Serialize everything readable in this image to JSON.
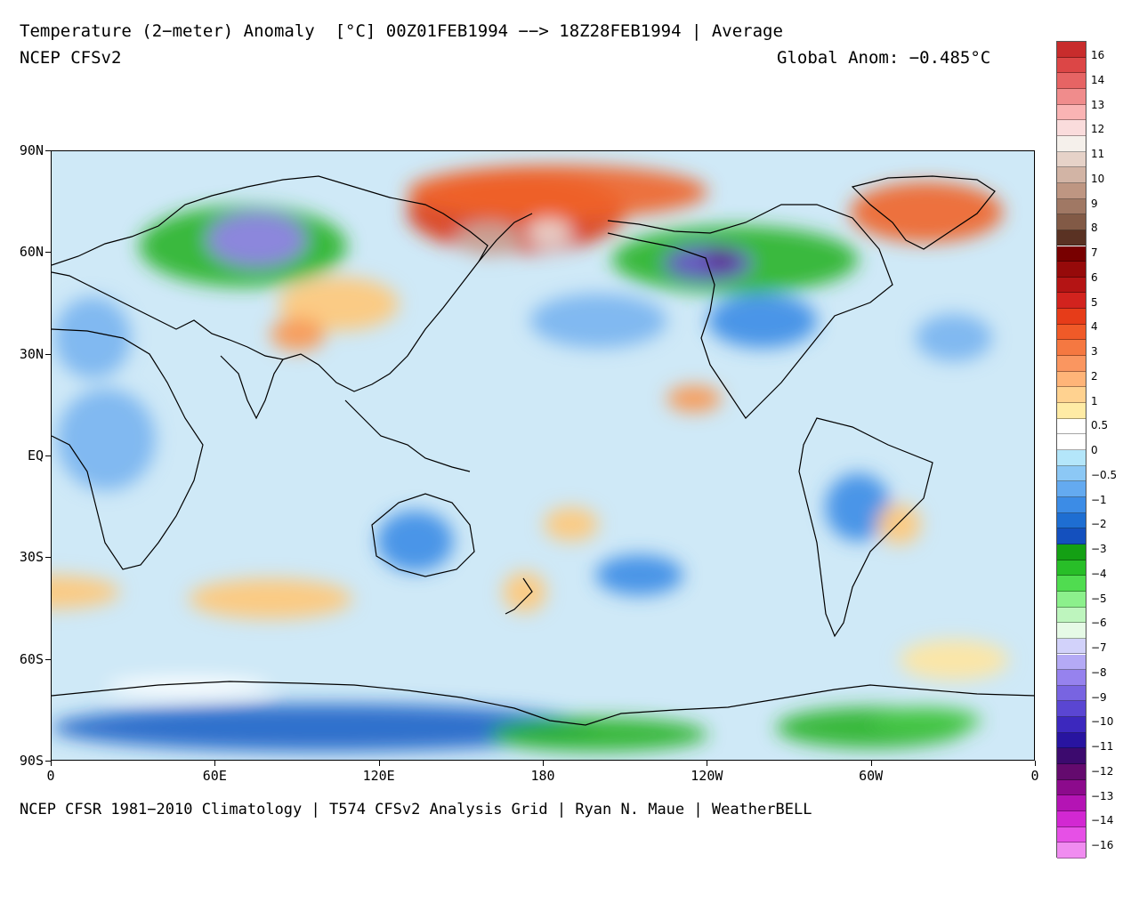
{
  "header": {
    "title": "Temperature (2−meter) Anomaly  [°C] 00Z01FEB1994 −−> 18Z28FEB1994 | Average",
    "model": "NCEP CFSv2",
    "global_anomaly": "Global Anom: −0.485°C"
  },
  "footer": {
    "credits": "NCEP CFSR 1981−2010 Climatology | T574 CFSv2 Analysis Grid | Ryan N. Maue | WeatherBELL"
  },
  "map": {
    "projection": "equirectangular",
    "lon_range": [
      0,
      360
    ],
    "lat_range": [
      -90,
      90
    ],
    "y_ticks": [
      {
        "lat": 90,
        "label": "90N"
      },
      {
        "lat": 60,
        "label": "60N"
      },
      {
        "lat": 30,
        "label": "30N"
      },
      {
        "lat": 0,
        "label": "EQ"
      },
      {
        "lat": -30,
        "label": "30S"
      },
      {
        "lat": -60,
        "label": "60S"
      },
      {
        "lat": -90,
        "label": "90S"
      }
    ],
    "x_ticks": [
      {
        "lon": 0,
        "label": "0"
      },
      {
        "lon": 60,
        "label": "60E"
      },
      {
        "lon": 120,
        "label": "120E"
      },
      {
        "lon": 180,
        "label": "180"
      },
      {
        "lon": 240,
        "label": "120W"
      },
      {
        "lon": 300,
        "label": "60W"
      },
      {
        "lon": 360,
        "label": "0"
      }
    ],
    "anomaly_regions": [
      {
        "lon": 170,
        "lat": 72,
        "rx": 40,
        "ry": 12,
        "value": 4
      },
      {
        "lon": 185,
        "lat": 78,
        "rx": 55,
        "ry": 8,
        "value": 3
      },
      {
        "lon": 160,
        "lat": 64,
        "rx": 12,
        "ry": 5,
        "value": 9
      },
      {
        "lon": 182,
        "lat": 66,
        "rx": 8,
        "ry": 4,
        "value": 10
      },
      {
        "lon": 320,
        "lat": 72,
        "rx": 28,
        "ry": 9,
        "value": 3
      },
      {
        "lon": 105,
        "lat": 45,
        "rx": 22,
        "ry": 8,
        "value": 1
      },
      {
        "lon": 90,
        "lat": 36,
        "rx": 10,
        "ry": 5,
        "value": 2
      },
      {
        "lon": 70,
        "lat": 62,
        "rx": 38,
        "ry": 12,
        "value": -4
      },
      {
        "lon": 75,
        "lat": 64,
        "rx": 18,
        "ry": 8,
        "value": -8
      },
      {
        "lon": 250,
        "lat": 58,
        "rx": 45,
        "ry": 10,
        "value": -4
      },
      {
        "lon": 240,
        "lat": 57,
        "rx": 16,
        "ry": 5,
        "value": -9
      },
      {
        "lon": 245,
        "lat": 58,
        "rx": 6,
        "ry": 3,
        "value": -11
      },
      {
        "lon": 260,
        "lat": 40,
        "rx": 20,
        "ry": 8,
        "value": -2
      },
      {
        "lon": 200,
        "lat": 40,
        "rx": 25,
        "ry": 8,
        "value": -1
      },
      {
        "lon": 15,
        "lat": 35,
        "rx": 14,
        "ry": 12,
        "value": -1
      },
      {
        "lon": 20,
        "lat": 5,
        "rx": 18,
        "ry": 15,
        "value": -1
      },
      {
        "lon": 0,
        "lat": -40,
        "rx": 25,
        "ry": 5,
        "value": 1
      },
      {
        "lon": 80,
        "lat": -42,
        "rx": 30,
        "ry": 6,
        "value": 1
      },
      {
        "lon": 133,
        "lat": -25,
        "rx": 14,
        "ry": 9,
        "value": -1.5
      },
      {
        "lon": 173,
        "lat": -40,
        "rx": 8,
        "ry": 6,
        "value": 1
      },
      {
        "lon": 215,
        "lat": -35,
        "rx": 16,
        "ry": 6,
        "value": -2
      },
      {
        "lon": 190,
        "lat": -20,
        "rx": 10,
        "ry": 5,
        "value": 1
      },
      {
        "lon": 235,
        "lat": 17,
        "rx": 10,
        "ry": 4,
        "value": 2
      },
      {
        "lon": 295,
        "lat": -15,
        "rx": 12,
        "ry": 10,
        "value": -1.5
      },
      {
        "lon": 310,
        "lat": -20,
        "rx": 8,
        "ry": 6,
        "value": 1
      },
      {
        "lon": 330,
        "lat": 35,
        "rx": 14,
        "ry": 7,
        "value": -1
      },
      {
        "lon": 100,
        "lat": -80,
        "rx": 100,
        "ry": 7,
        "value": -2.5
      },
      {
        "lon": 200,
        "lat": -82,
        "rx": 40,
        "ry": 5,
        "value": -4
      },
      {
        "lon": 300,
        "lat": -80,
        "rx": 35,
        "ry": 6,
        "value": -4
      },
      {
        "lon": 320,
        "lat": -78,
        "rx": 20,
        "ry": 4,
        "value": -5
      },
      {
        "lon": 330,
        "lat": -60,
        "rx": 20,
        "ry": 6,
        "value": 0.5
      },
      {
        "lon": 50,
        "lat": -68,
        "rx": 30,
        "ry": 3,
        "value": 0
      }
    ]
  },
  "colorbar": {
    "levels": [
      {
        "label": "16",
        "color": "#c82c2c"
      },
      {
        "label": "14",
        "color": "#dc4646"
      },
      {
        "label": "13",
        "color": "#e66464"
      },
      {
        "label": "12",
        "color": "#f08c8c"
      },
      {
        "label": "11",
        "color": "#fab4b4"
      },
      {
        "label": "10",
        "color": "#fadcdc"
      },
      {
        "label": "9",
        "color": "#f5f0eb"
      },
      {
        "label": "8",
        "color": "#e6d2c8"
      },
      {
        "label": "7",
        "color": "#d2b4a5"
      },
      {
        "label": "",
        "color": "#be9682"
      },
      {
        "label": "6",
        "color": "#a07864"
      },
      {
        "label": "5",
        "color": "#825a46"
      },
      {
        "label": "4",
        "color": "#5a3223"
      },
      {
        "label": "3",
        "color": "#780000"
      },
      {
        "label": "2",
        "color": "#960a0a"
      },
      {
        "label": "1",
        "color": "#b41414"
      },
      {
        "label": "0.5",
        "color": "#d2231e"
      },
      {
        "label": "",
        "color": "#e63c19"
      },
      {
        "label": "",
        "color": "#f05a28"
      },
      {
        "label": "",
        "color": "#f57841"
      },
      {
        "label": "",
        "color": "#fa9660"
      },
      {
        "label": "",
        "color": "#ffb478"
      },
      {
        "label": "",
        "color": "#ffd290"
      },
      {
        "label": "",
        "color": "#ffeba5"
      },
      {
        "label": "0",
        "color": "#ffffff"
      },
      {
        "label": "−0.5",
        "color": "#ffffff"
      },
      {
        "label": "−1",
        "color": "#b4e6fa"
      },
      {
        "label": "−2",
        "color": "#8cc8f5"
      },
      {
        "label": "−3",
        "color": "#64aaf0"
      },
      {
        "label": "−4",
        "color": "#3c8ce6"
      },
      {
        "label": "−5",
        "color": "#1e6ed2"
      },
      {
        "label": "−6",
        "color": "#1450be"
      },
      {
        "label": "−7",
        "color": "#14a014"
      },
      {
        "label": "−8",
        "color": "#28be28"
      },
      {
        "label": "−9",
        "color": "#50dc50"
      },
      {
        "label": "−10",
        "color": "#8cf08c"
      },
      {
        "label": "−11",
        "color": "#bef5be"
      },
      {
        "label": "−12",
        "color": "#e6fae6"
      },
      {
        "label": "−13",
        "color": "#d2d2fa"
      },
      {
        "label": "−14",
        "color": "#b4aaf5"
      },
      {
        "label": "−16",
        "color": "#9682ee"
      },
      {
        "label": "",
        "color": "#7864e1"
      },
      {
        "label": "",
        "color": "#5a46d2"
      },
      {
        "label": "",
        "color": "#3c28be"
      },
      {
        "label": "",
        "color": "#2814a0"
      },
      {
        "label": "",
        "color": "#3c0a6e"
      },
      {
        "label": "",
        "color": "#640a6e"
      },
      {
        "label": "",
        "color": "#8c0a8c"
      },
      {
        "label": "",
        "color": "#b414b4"
      },
      {
        "label": "",
        "color": "#d228d2"
      },
      {
        "label": "",
        "color": "#e650e6"
      },
      {
        "label": "",
        "color": "#f08cf0"
      }
    ]
  }
}
